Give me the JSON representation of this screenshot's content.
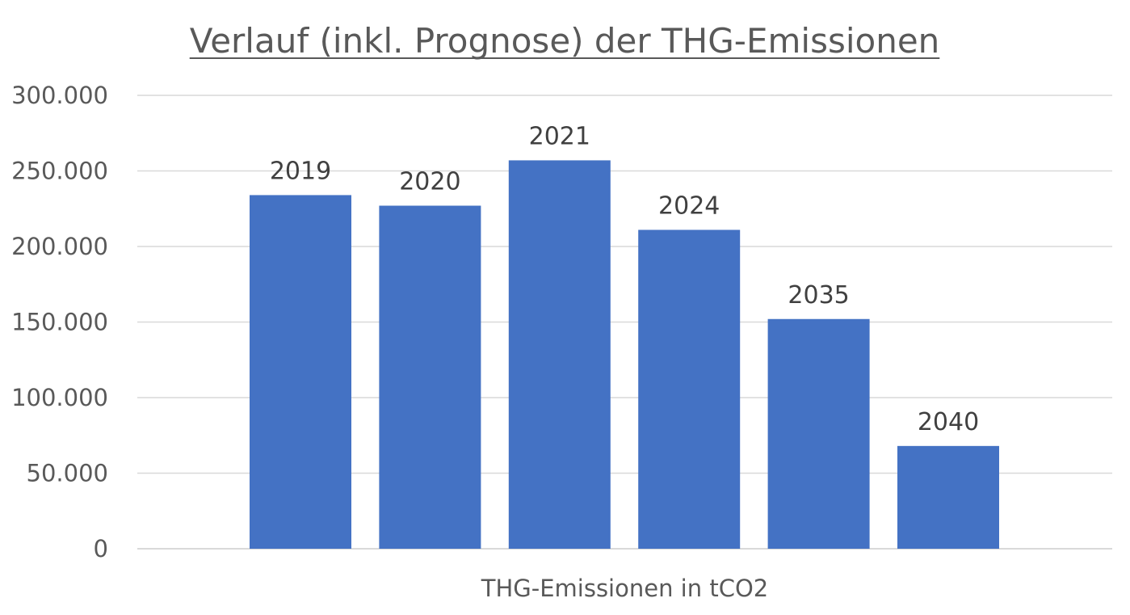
{
  "chart_data": {
    "type": "bar",
    "title": "Verlauf (inkl. Prognose) der THG-Emissionen",
    "categories": [
      "THG-Emissionen in tCO2"
    ],
    "series": [
      {
        "name": "2019",
        "values": [
          234000
        ]
      },
      {
        "name": "2020",
        "values": [
          227000
        ]
      },
      {
        "name": "2021",
        "values": [
          257000
        ]
      },
      {
        "name": "2024",
        "values": [
          211000
        ]
      },
      {
        "name": "2035",
        "values": [
          152000
        ]
      },
      {
        "name": "2040",
        "values": [
          68000
        ]
      }
    ],
    "data_labels": [
      "2019",
      "2020",
      "2021",
      "2024",
      "2035",
      "2040"
    ],
    "ylim": [
      0,
      300000
    ],
    "yticks": [
      0,
      50000,
      100000,
      150000,
      200000,
      250000,
      300000
    ],
    "ytick_labels": [
      "0",
      "50.000",
      "100.000",
      "150.000",
      "200.000",
      "250.000",
      "300.000"
    ],
    "xlabel": "",
    "ylabel": "",
    "grid": true,
    "legend": "none",
    "bar_color": "#4472c4",
    "grid_color": "#d9d9d9",
    "text_color": "#595959",
    "label_color": "#404040"
  }
}
